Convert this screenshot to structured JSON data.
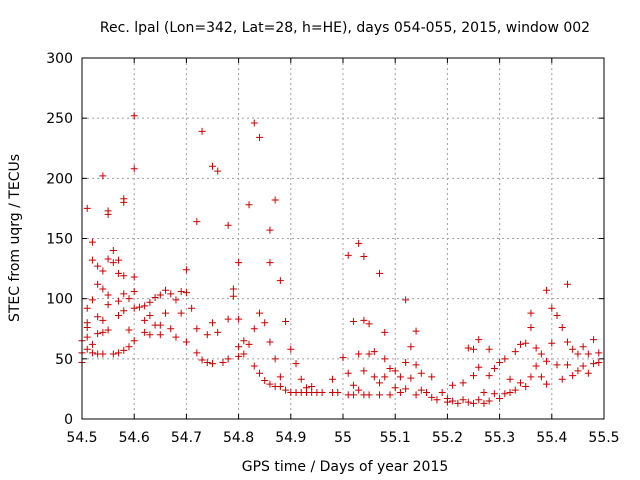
{
  "chart_data": {
    "type": "scatter",
    "title": "Rec. lpal (Lon=342, Lat=28, h=HE), days 054-055, 2015, window 002",
    "xlabel": "GPS time / Days of year 2015",
    "ylabel": "STEC from uqrg / TECUs",
    "xlim": [
      54.5,
      55.5
    ],
    "ylim": [
      0,
      300
    ],
    "xticks": [
      54.5,
      54.6,
      54.7,
      54.8,
      54.9,
      55,
      55.1,
      55.2,
      55.3,
      55.4,
      55.5
    ],
    "xtick_labels": [
      "54.5",
      "54.6",
      "54.7",
      "54.8",
      "54.9",
      "55",
      "55.1",
      "55.2",
      "55.3",
      "55.4",
      "55.5"
    ],
    "yticks": [
      0,
      50,
      100,
      150,
      200,
      250,
      300
    ],
    "ytick_labels": [
      "0",
      "50",
      "100",
      "150",
      "200",
      "250",
      "300"
    ],
    "grid": true,
    "marker": "+",
    "color": "#cc0000",
    "series": [
      {
        "name": "STEC",
        "points": [
          [
            54.5,
            47
          ],
          [
            54.5,
            55
          ],
          [
            54.5,
            65
          ],
          [
            54.51,
            68
          ],
          [
            54.51,
            76
          ],
          [
            54.51,
            80
          ],
          [
            54.51,
            175
          ],
          [
            54.51,
            92
          ],
          [
            54.51,
            58
          ],
          [
            54.52,
            62
          ],
          [
            54.52,
            55
          ],
          [
            54.52,
            99
          ],
          [
            54.52,
            132
          ],
          [
            54.52,
            147
          ],
          [
            54.53,
            85
          ],
          [
            54.53,
            71
          ],
          [
            54.53,
            54
          ],
          [
            54.53,
            112
          ],
          [
            54.53,
            127
          ],
          [
            54.54,
            123
          ],
          [
            54.54,
            202
          ],
          [
            54.54,
            108
          ],
          [
            54.54,
            82
          ],
          [
            54.54,
            72
          ],
          [
            54.54,
            54
          ],
          [
            54.55,
            170
          ],
          [
            54.55,
            173
          ],
          [
            54.55,
            133
          ],
          [
            54.55,
            95
          ],
          [
            54.55,
            103
          ],
          [
            54.55,
            74
          ],
          [
            54.56,
            54
          ],
          [
            54.56,
            130
          ],
          [
            54.56,
            140
          ],
          [
            54.57,
            132
          ],
          [
            54.57,
            121
          ],
          [
            54.57,
            98
          ],
          [
            54.57,
            86
          ],
          [
            54.57,
            55
          ],
          [
            54.58,
            180
          ],
          [
            54.58,
            183
          ],
          [
            54.58,
            119
          ],
          [
            54.58,
            104
          ],
          [
            54.58,
            90
          ],
          [
            54.58,
            57
          ],
          [
            54.59,
            100
          ],
          [
            54.59,
            74
          ],
          [
            54.59,
            60
          ],
          [
            54.6,
            252
          ],
          [
            54.6,
            208
          ],
          [
            54.6,
            118
          ],
          [
            54.6,
            106
          ],
          [
            54.6,
            92
          ],
          [
            54.6,
            65
          ],
          [
            54.61,
            93
          ],
          [
            54.62,
            94
          ],
          [
            54.62,
            82
          ],
          [
            54.62,
            72
          ],
          [
            54.63,
            97
          ],
          [
            54.63,
            86
          ],
          [
            54.63,
            70
          ],
          [
            54.64,
            101
          ],
          [
            54.64,
            78
          ],
          [
            54.65,
            103
          ],
          [
            54.65,
            78
          ],
          [
            54.65,
            70
          ],
          [
            54.66,
            107
          ],
          [
            54.66,
            88
          ],
          [
            54.67,
            104
          ],
          [
            54.67,
            75
          ],
          [
            54.68,
            99
          ],
          [
            54.68,
            68
          ],
          [
            54.69,
            106
          ],
          [
            54.69,
            88
          ],
          [
            54.7,
            105
          ],
          [
            54.7,
            124
          ],
          [
            54.7,
            64
          ],
          [
            54.71,
            92
          ],
          [
            54.72,
            164
          ],
          [
            54.72,
            75
          ],
          [
            54.72,
            55
          ],
          [
            54.73,
            239
          ],
          [
            54.73,
            49
          ],
          [
            54.74,
            70
          ],
          [
            54.74,
            47
          ],
          [
            54.75,
            210
          ],
          [
            54.75,
            80
          ],
          [
            54.75,
            46
          ],
          [
            54.76,
            206
          ],
          [
            54.76,
            72
          ],
          [
            54.77,
            47
          ],
          [
            54.78,
            161
          ],
          [
            54.78,
            83
          ],
          [
            54.78,
            50
          ],
          [
            54.79,
            108
          ],
          [
            54.79,
            102
          ],
          [
            54.8,
            83
          ],
          [
            54.8,
            60
          ],
          [
            54.8,
            52
          ],
          [
            54.8,
            130
          ],
          [
            54.81,
            65
          ],
          [
            54.81,
            54
          ],
          [
            54.82,
            178
          ],
          [
            54.82,
            62
          ],
          [
            54.83,
            246
          ],
          [
            54.83,
            75
          ],
          [
            54.83,
            44
          ],
          [
            54.84,
            234
          ],
          [
            54.84,
            88
          ],
          [
            54.84,
            38
          ],
          [
            54.85,
            80
          ],
          [
            54.85,
            32
          ],
          [
            54.86,
            157
          ],
          [
            54.86,
            130
          ],
          [
            54.86,
            64
          ],
          [
            54.86,
            29
          ],
          [
            54.87,
            182
          ],
          [
            54.87,
            50
          ],
          [
            54.87,
            27
          ],
          [
            54.88,
            115
          ],
          [
            54.88,
            35
          ],
          [
            54.88,
            27
          ],
          [
            54.89,
            81
          ],
          [
            54.89,
            24
          ],
          [
            54.9,
            58
          ],
          [
            54.9,
            22
          ],
          [
            54.91,
            46
          ],
          [
            54.91,
            22
          ],
          [
            54.92,
            33
          ],
          [
            54.92,
            22
          ],
          [
            54.93,
            26
          ],
          [
            54.93,
            22
          ],
          [
            54.94,
            27
          ],
          [
            54.94,
            22
          ],
          [
            54.95,
            22
          ],
          [
            54.96,
            22
          ],
          [
            54.98,
            33
          ],
          [
            54.98,
            22
          ],
          [
            54.99,
            22
          ],
          [
            55.0,
            51
          ],
          [
            55.01,
            136
          ],
          [
            55.01,
            38
          ],
          [
            55.01,
            20
          ],
          [
            55.02,
            81
          ],
          [
            55.02,
            28
          ],
          [
            55.02,
            20
          ],
          [
            55.03,
            146
          ],
          [
            55.03,
            54
          ],
          [
            55.03,
            24
          ],
          [
            55.04,
            135
          ],
          [
            55.04,
            82
          ],
          [
            55.04,
            40
          ],
          [
            55.04,
            20
          ],
          [
            55.05,
            79
          ],
          [
            55.05,
            54
          ],
          [
            55.05,
            20
          ],
          [
            55.06,
            56
          ],
          [
            55.06,
            35
          ],
          [
            55.07,
            121
          ],
          [
            55.07,
            30
          ],
          [
            55.07,
            20
          ],
          [
            55.08,
            72
          ],
          [
            55.08,
            50
          ],
          [
            55.08,
            35
          ],
          [
            55.09,
            42
          ],
          [
            55.09,
            20
          ],
          [
            55.1,
            40
          ],
          [
            55.1,
            26
          ],
          [
            55.11,
            35
          ],
          [
            55.11,
            22
          ],
          [
            55.12,
            99
          ],
          [
            55.12,
            47
          ],
          [
            55.12,
            25
          ],
          [
            55.13,
            60
          ],
          [
            55.13,
            34
          ],
          [
            55.14,
            73
          ],
          [
            55.14,
            45
          ],
          [
            55.14,
            20
          ],
          [
            55.15,
            38
          ],
          [
            55.15,
            24
          ],
          [
            55.16,
            22
          ],
          [
            55.17,
            35
          ],
          [
            55.17,
            18
          ],
          [
            55.18,
            16
          ],
          [
            55.19,
            22
          ],
          [
            55.2,
            17
          ],
          [
            55.2,
            14
          ],
          [
            55.21,
            28
          ],
          [
            55.21,
            15
          ],
          [
            55.22,
            13
          ],
          [
            55.23,
            30
          ],
          [
            55.23,
            16
          ],
          [
            55.24,
            59
          ],
          [
            55.24,
            14
          ],
          [
            55.25,
            58
          ],
          [
            55.25,
            36
          ],
          [
            55.25,
            13
          ],
          [
            55.26,
            66
          ],
          [
            55.26,
            43
          ],
          [
            55.26,
            16
          ],
          [
            55.27,
            22
          ],
          [
            55.27,
            13
          ],
          [
            55.28,
            58
          ],
          [
            55.28,
            36
          ],
          [
            55.28,
            15
          ],
          [
            55.29,
            42
          ],
          [
            55.29,
            21
          ],
          [
            55.3,
            47
          ],
          [
            55.3,
            17
          ],
          [
            55.31,
            50
          ],
          [
            55.31,
            21
          ],
          [
            55.32,
            33
          ],
          [
            55.32,
            22
          ],
          [
            55.33,
            56
          ],
          [
            55.33,
            24
          ],
          [
            55.34,
            62
          ],
          [
            55.34,
            30
          ],
          [
            55.35,
            63
          ],
          [
            55.35,
            27
          ],
          [
            55.36,
            88
          ],
          [
            55.36,
            76
          ],
          [
            55.36,
            35
          ],
          [
            55.37,
            59
          ],
          [
            55.37,
            44
          ],
          [
            55.38,
            54
          ],
          [
            55.38,
            35
          ],
          [
            55.39,
            107
          ],
          [
            55.39,
            48
          ],
          [
            55.39,
            29
          ],
          [
            55.4,
            92
          ],
          [
            55.4,
            63
          ],
          [
            55.41,
            86
          ],
          [
            55.41,
            45
          ],
          [
            55.42,
            76
          ],
          [
            55.42,
            33
          ],
          [
            55.43,
            112
          ],
          [
            55.43,
            64
          ],
          [
            55.43,
            45
          ],
          [
            55.44,
            58
          ],
          [
            55.44,
            36
          ],
          [
            55.45,
            54
          ],
          [
            55.45,
            40
          ],
          [
            55.46,
            60
          ],
          [
            55.46,
            44
          ],
          [
            55.47,
            54
          ],
          [
            55.47,
            38
          ],
          [
            55.48,
            66
          ],
          [
            55.48,
            46
          ],
          [
            55.49,
            55
          ],
          [
            55.49,
            47
          ]
        ]
      }
    ]
  }
}
